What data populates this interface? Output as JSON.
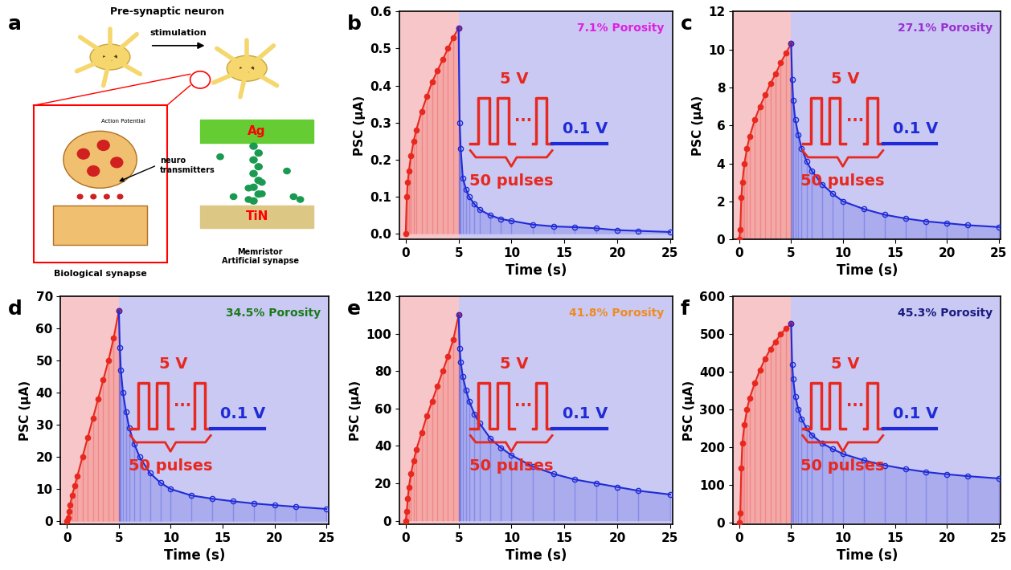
{
  "diagram": {
    "panel_label": "a",
    "title": "Pre-synaptic neuron",
    "arrow_label": "stimulation",
    "action_potential": "Action Potential",
    "neurotransmitters": "neuro\ntransmitters",
    "biological": "Biological synapse",
    "top_electrode": "Ag",
    "bottom_electrode": "TiN",
    "memristor": "Memristor\nArtificial synapse"
  },
  "chart_data": [
    {
      "type": "line",
      "panel_label": "b",
      "xlabel": "Time (s)",
      "ylabel": "PSC (μA)",
      "annotation": {
        "text": "7.1% Porosity",
        "color": "#e020e0"
      },
      "inset": {
        "pulse_voltage": "5 V",
        "read_voltage": "0.1 V",
        "ellipsis": "···",
        "pulse_count": "50 pulses"
      },
      "xlim": [
        -0.6,
        25.2
      ],
      "ylim": [
        -0.015,
        0.6
      ],
      "xticks": [
        0,
        5,
        10,
        15,
        20,
        25
      ],
      "yticks": [
        0.0,
        0.1,
        0.2,
        0.3,
        0.4,
        0.5,
        0.6
      ],
      "series": [
        {
          "color": "#e8281e",
          "marker": "filled_circle",
          "x": [
            0,
            0.1,
            0.2,
            0.3,
            0.5,
            0.75,
            1,
            1.5,
            2,
            2.5,
            3,
            3.5,
            4,
            4.5,
            5
          ],
          "values": [
            0,
            0.1,
            0.14,
            0.17,
            0.21,
            0.25,
            0.28,
            0.33,
            0.37,
            0.41,
            0.44,
            0.47,
            0.5,
            0.53,
            0.555
          ]
        },
        {
          "color": "#1f2bd6",
          "marker": "open_circle",
          "x": [
            5,
            5.1,
            5.2,
            5.4,
            5.7,
            6,
            6.5,
            7,
            8,
            9,
            10,
            12,
            14,
            16,
            18,
            20,
            22,
            25
          ],
          "values": [
            0.555,
            0.3,
            0.23,
            0.15,
            0.12,
            0.1,
            0.08,
            0.065,
            0.05,
            0.04,
            0.035,
            0.025,
            0.02,
            0.018,
            0.015,
            0.01,
            0.008,
            0.005
          ]
        }
      ]
    },
    {
      "type": "line",
      "panel_label": "c",
      "xlabel": "Time (s)",
      "ylabel": "PSC (μA)",
      "annotation": {
        "text": "27.1% Porosity",
        "color": "#9b30d0"
      },
      "inset": {
        "pulse_voltage": "5 V",
        "read_voltage": "0.1 V",
        "ellipsis": "···",
        "pulse_count": "50 pulses"
      },
      "xlim": [
        -0.6,
        25.2
      ],
      "ylim": [
        0,
        12
      ],
      "xticks": [
        0,
        5,
        10,
        15,
        20,
        25
      ],
      "yticks": [
        0,
        2,
        4,
        6,
        8,
        10,
        12
      ],
      "series": [
        {
          "color": "#e8281e",
          "marker": "filled_circle",
          "x": [
            0,
            0.1,
            0.2,
            0.3,
            0.5,
            0.75,
            1,
            1.5,
            2,
            2.5,
            3,
            3.5,
            4,
            4.5,
            5
          ],
          "values": [
            0,
            0.5,
            2.2,
            3.0,
            4.0,
            4.8,
            5.4,
            6.3,
            7.0,
            7.6,
            8.2,
            8.7,
            9.3,
            9.8,
            10.3
          ]
        },
        {
          "color": "#1f2bd6",
          "marker": "open_circle",
          "x": [
            5,
            5.1,
            5.2,
            5.4,
            5.7,
            6,
            6.5,
            7,
            8,
            9,
            10,
            12,
            14,
            16,
            18,
            20,
            22,
            25
          ],
          "values": [
            10.3,
            8.4,
            7.3,
            6.3,
            5.5,
            4.8,
            4.1,
            3.6,
            2.9,
            2.4,
            2.0,
            1.6,
            1.3,
            1.1,
            0.95,
            0.85,
            0.75,
            0.65
          ]
        }
      ]
    },
    {
      "type": "line",
      "panel_label": "d",
      "xlabel": "Time (s)",
      "ylabel": "PSC (μA)",
      "annotation": {
        "text": "34.5% Porosity",
        "color": "#1a7a1a"
      },
      "inset": {
        "pulse_voltage": "5 V",
        "read_voltage": "0.1 V",
        "ellipsis": "···",
        "pulse_count": "50 pulses"
      },
      "xlim": [
        -0.6,
        25.2
      ],
      "ylim": [
        -1,
        70
      ],
      "xticks": [
        0,
        5,
        10,
        15,
        20,
        25
      ],
      "yticks": [
        0,
        10,
        20,
        30,
        40,
        50,
        60,
        70
      ],
      "series": [
        {
          "color": "#e8281e",
          "marker": "filled_circle",
          "x": [
            0,
            0.1,
            0.2,
            0.3,
            0.5,
            0.75,
            1,
            1.5,
            2,
            2.5,
            3,
            3.5,
            4,
            4.5,
            5
          ],
          "values": [
            0,
            1,
            3,
            5,
            8,
            11,
            14,
            20,
            26,
            32,
            38,
            44,
            50,
            57,
            65.5
          ]
        },
        {
          "color": "#1f2bd6",
          "marker": "open_circle",
          "x": [
            5,
            5.1,
            5.2,
            5.4,
            5.7,
            6,
            6.5,
            7,
            8,
            9,
            10,
            12,
            14,
            16,
            18,
            20,
            22,
            25
          ],
          "values": [
            65.5,
            54,
            47,
            40,
            34,
            29,
            24,
            20,
            15,
            12,
            10,
            8,
            7,
            6.2,
            5.5,
            5,
            4.5,
            3.8
          ]
        }
      ]
    },
    {
      "type": "line",
      "panel_label": "e",
      "xlabel": "Time (s)",
      "ylabel": "PSC (μA)",
      "annotation": {
        "text": "41.8% Porosity",
        "color": "#f08a20"
      },
      "inset": {
        "pulse_voltage": "5 V",
        "read_voltage": "0.1 V",
        "ellipsis": "···",
        "pulse_count": "50 pulses"
      },
      "xlim": [
        -0.6,
        25.2
      ],
      "ylim": [
        -2,
        120
      ],
      "xticks": [
        0,
        5,
        10,
        15,
        20,
        25
      ],
      "yticks": [
        0,
        20,
        40,
        60,
        80,
        100,
        120
      ],
      "series": [
        {
          "color": "#e8281e",
          "marker": "filled_circle",
          "x": [
            0,
            0.1,
            0.2,
            0.3,
            0.5,
            0.75,
            1,
            1.5,
            2,
            2.5,
            3,
            3.5,
            4,
            4.5,
            5
          ],
          "values": [
            0,
            5,
            12,
            18,
            25,
            32,
            38,
            47,
            56,
            64,
            72,
            80,
            88,
            97,
            110
          ]
        },
        {
          "color": "#1f2bd6",
          "marker": "open_circle",
          "x": [
            5,
            5.1,
            5.2,
            5.4,
            5.7,
            6,
            6.5,
            7,
            8,
            9,
            10,
            12,
            14,
            16,
            18,
            20,
            22,
            25
          ],
          "values": [
            110,
            92,
            85,
            77,
            70,
            64,
            57,
            52,
            44,
            39,
            35,
            29,
            25,
            22,
            20,
            18,
            16,
            14
          ]
        }
      ]
    },
    {
      "type": "line",
      "panel_label": "f",
      "xlabel": "Time (s)",
      "ylabel": "PSC (μA)",
      "annotation": {
        "text": "45.3% Porosity",
        "color": "#1a1a80"
      },
      "inset": {
        "pulse_voltage": "5 V",
        "read_voltage": "0.1 V",
        "ellipsis": "···",
        "pulse_count": "50 pulses"
      },
      "xlim": [
        -0.6,
        25.2
      ],
      "ylim": [
        -5,
        600
      ],
      "xticks": [
        0,
        5,
        10,
        15,
        20,
        25
      ],
      "yticks": [
        0,
        100,
        200,
        300,
        400,
        500,
        600
      ],
      "series": [
        {
          "color": "#e8281e",
          "marker": "filled_circle",
          "x": [
            0,
            0.1,
            0.2,
            0.3,
            0.5,
            0.75,
            1,
            1.5,
            2,
            2.5,
            3,
            3.5,
            4,
            4.5,
            5
          ],
          "values": [
            0,
            25,
            145,
            210,
            260,
            300,
            330,
            370,
            405,
            435,
            460,
            480,
            500,
            515,
            527
          ]
        },
        {
          "color": "#1f2bd6",
          "marker": "open_circle",
          "x": [
            5,
            5.1,
            5.2,
            5.4,
            5.7,
            6,
            6.5,
            7,
            8,
            9,
            10,
            12,
            14,
            16,
            18,
            20,
            22,
            25
          ],
          "values": [
            527,
            420,
            380,
            335,
            300,
            275,
            250,
            232,
            210,
            195,
            182,
            165,
            152,
            142,
            134,
            128,
            123,
            117
          ]
        }
      ]
    }
  ]
}
